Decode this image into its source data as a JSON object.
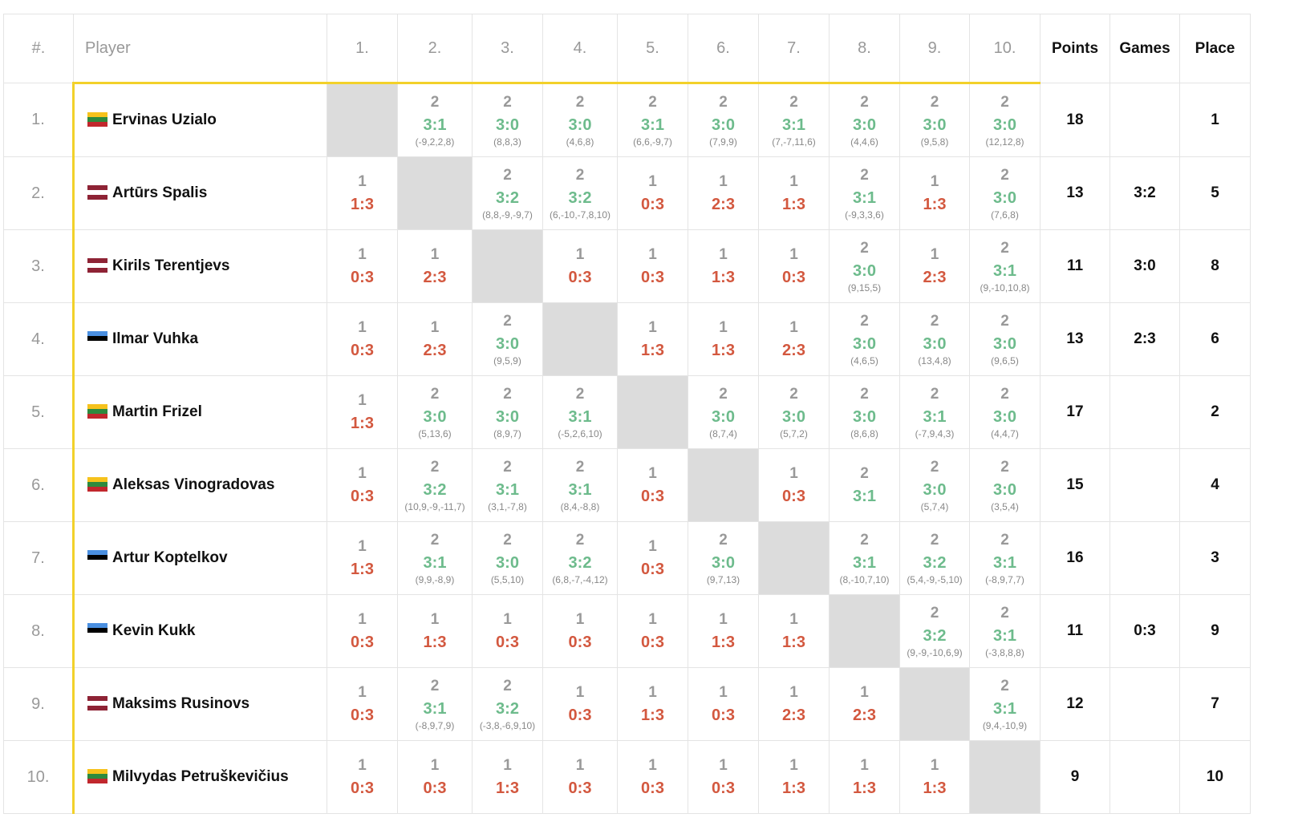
{
  "headers": {
    "index": "#.",
    "player": "Player",
    "columns": [
      "1.",
      "2.",
      "3.",
      "4.",
      "5.",
      "6.",
      "7.",
      "8.",
      "9.",
      "10."
    ],
    "points": "Points",
    "games": "Games",
    "place": "Place"
  },
  "colors": {
    "accent_line": "#f2d12a",
    "win": "#6dbb8c",
    "loss": "#d3583f",
    "self_cell": "#dcdcdc"
  },
  "rows": [
    {
      "index": "1.",
      "name": "Ervinas Uzialo",
      "flag": "lithuania",
      "points": "18",
      "games": "",
      "place": "1",
      "results": [
        null,
        {
          "pts": "2",
          "score": "3:1",
          "sets": "(-9,2,2,8)"
        },
        {
          "pts": "2",
          "score": "3:0",
          "sets": "(8,8,3)"
        },
        {
          "pts": "2",
          "score": "3:0",
          "sets": "(4,6,8)"
        },
        {
          "pts": "2",
          "score": "3:1",
          "sets": "(6,6,-9,7)"
        },
        {
          "pts": "2",
          "score": "3:0",
          "sets": "(7,9,9)"
        },
        {
          "pts": "2",
          "score": "3:1",
          "sets": "(7,-7,11,6)"
        },
        {
          "pts": "2",
          "score": "3:0",
          "sets": "(4,4,6)"
        },
        {
          "pts": "2",
          "score": "3:0",
          "sets": "(9,5,8)"
        },
        {
          "pts": "2",
          "score": "3:0",
          "sets": "(12,12,8)"
        }
      ]
    },
    {
      "index": "2.",
      "name": "Artūrs Spalis",
      "flag": "latvia",
      "points": "13",
      "games": "3:2",
      "place": "5",
      "results": [
        {
          "pts": "1",
          "score": "1:3",
          "sets": ""
        },
        null,
        {
          "pts": "2",
          "score": "3:2",
          "sets": "(8,8,-9,-9,7)"
        },
        {
          "pts": "2",
          "score": "3:2",
          "sets": "(6,-10,-7,8,10)"
        },
        {
          "pts": "1",
          "score": "0:3",
          "sets": ""
        },
        {
          "pts": "1",
          "score": "2:3",
          "sets": ""
        },
        {
          "pts": "1",
          "score": "1:3",
          "sets": ""
        },
        {
          "pts": "2",
          "score": "3:1",
          "sets": "(-9,3,3,6)"
        },
        {
          "pts": "1",
          "score": "1:3",
          "sets": ""
        },
        {
          "pts": "2",
          "score": "3:0",
          "sets": "(7,6,8)"
        }
      ]
    },
    {
      "index": "3.",
      "name": "Kirils Terentjevs",
      "flag": "latvia",
      "points": "11",
      "games": "3:0",
      "place": "8",
      "results": [
        {
          "pts": "1",
          "score": "0:3",
          "sets": ""
        },
        {
          "pts": "1",
          "score": "2:3",
          "sets": ""
        },
        null,
        {
          "pts": "1",
          "score": "0:3",
          "sets": ""
        },
        {
          "pts": "1",
          "score": "0:3",
          "sets": ""
        },
        {
          "pts": "1",
          "score": "1:3",
          "sets": ""
        },
        {
          "pts": "1",
          "score": "0:3",
          "sets": ""
        },
        {
          "pts": "2",
          "score": "3:0",
          "sets": "(9,15,5)"
        },
        {
          "pts": "1",
          "score": "2:3",
          "sets": ""
        },
        {
          "pts": "2",
          "score": "3:1",
          "sets": "(9,-10,10,8)"
        }
      ]
    },
    {
      "index": "4.",
      "name": "Ilmar Vuhka",
      "flag": "estonia",
      "points": "13",
      "games": "2:3",
      "place": "6",
      "results": [
        {
          "pts": "1",
          "score": "0:3",
          "sets": ""
        },
        {
          "pts": "1",
          "score": "2:3",
          "sets": ""
        },
        {
          "pts": "2",
          "score": "3:0",
          "sets": "(9,5,9)"
        },
        null,
        {
          "pts": "1",
          "score": "1:3",
          "sets": ""
        },
        {
          "pts": "1",
          "score": "1:3",
          "sets": ""
        },
        {
          "pts": "1",
          "score": "2:3",
          "sets": ""
        },
        {
          "pts": "2",
          "score": "3:0",
          "sets": "(4,6,5)"
        },
        {
          "pts": "2",
          "score": "3:0",
          "sets": "(13,4,8)"
        },
        {
          "pts": "2",
          "score": "3:0",
          "sets": "(9,6,5)"
        }
      ]
    },
    {
      "index": "5.",
      "name": "Martin Frizel",
      "flag": "lithuania",
      "points": "17",
      "games": "",
      "place": "2",
      "results": [
        {
          "pts": "1",
          "score": "1:3",
          "sets": ""
        },
        {
          "pts": "2",
          "score": "3:0",
          "sets": "(5,13,6)"
        },
        {
          "pts": "2",
          "score": "3:0",
          "sets": "(8,9,7)"
        },
        {
          "pts": "2",
          "score": "3:1",
          "sets": "(-5,2,6,10)"
        },
        null,
        {
          "pts": "2",
          "score": "3:0",
          "sets": "(8,7,4)"
        },
        {
          "pts": "2",
          "score": "3:0",
          "sets": "(5,7,2)"
        },
        {
          "pts": "2",
          "score": "3:0",
          "sets": "(8,6,8)"
        },
        {
          "pts": "2",
          "score": "3:1",
          "sets": "(-7,9,4,3)"
        },
        {
          "pts": "2",
          "score": "3:0",
          "sets": "(4,4,7)"
        }
      ]
    },
    {
      "index": "6.",
      "name": "Aleksas Vinogradovas",
      "flag": "lithuania",
      "points": "15",
      "games": "",
      "place": "4",
      "results": [
        {
          "pts": "1",
          "score": "0:3",
          "sets": ""
        },
        {
          "pts": "2",
          "score": "3:2",
          "sets": "(10,9,-9,-11,7)"
        },
        {
          "pts": "2",
          "score": "3:1",
          "sets": "(3,1,-7,8)"
        },
        {
          "pts": "2",
          "score": "3:1",
          "sets": "(8,4,-8,8)"
        },
        {
          "pts": "1",
          "score": "0:3",
          "sets": ""
        },
        null,
        {
          "pts": "1",
          "score": "0:3",
          "sets": ""
        },
        {
          "pts": "2",
          "score": "3:1",
          "sets": ""
        },
        {
          "pts": "2",
          "score": "3:0",
          "sets": "(5,7,4)"
        },
        {
          "pts": "2",
          "score": "3:0",
          "sets": "(3,5,4)"
        }
      ]
    },
    {
      "index": "7.",
      "name": "Artur Koptelkov",
      "flag": "estonia",
      "points": "16",
      "games": "",
      "place": "3",
      "results": [
        {
          "pts": "1",
          "score": "1:3",
          "sets": ""
        },
        {
          "pts": "2",
          "score": "3:1",
          "sets": "(9,9,-8,9)"
        },
        {
          "pts": "2",
          "score": "3:0",
          "sets": "(5,5,10)"
        },
        {
          "pts": "2",
          "score": "3:2",
          "sets": "(6,8,-7,-4,12)"
        },
        {
          "pts": "1",
          "score": "0:3",
          "sets": ""
        },
        {
          "pts": "2",
          "score": "3:0",
          "sets": "(9,7,13)"
        },
        null,
        {
          "pts": "2",
          "score": "3:1",
          "sets": "(8,-10,7,10)"
        },
        {
          "pts": "2",
          "score": "3:2",
          "sets": "(5,4,-9,-5,10)"
        },
        {
          "pts": "2",
          "score": "3:1",
          "sets": "(-8,9,7,7)"
        }
      ]
    },
    {
      "index": "8.",
      "name": "Kevin Kukk",
      "flag": "estonia",
      "points": "11",
      "games": "0:3",
      "place": "9",
      "results": [
        {
          "pts": "1",
          "score": "0:3",
          "sets": ""
        },
        {
          "pts": "1",
          "score": "1:3",
          "sets": ""
        },
        {
          "pts": "1",
          "score": "0:3",
          "sets": ""
        },
        {
          "pts": "1",
          "score": "0:3",
          "sets": ""
        },
        {
          "pts": "1",
          "score": "0:3",
          "sets": ""
        },
        {
          "pts": "1",
          "score": "1:3",
          "sets": ""
        },
        {
          "pts": "1",
          "score": "1:3",
          "sets": ""
        },
        null,
        {
          "pts": "2",
          "score": "3:2",
          "sets": "(9,-9,-10,6,9)"
        },
        {
          "pts": "2",
          "score": "3:1",
          "sets": "(-3,8,8,8)"
        }
      ]
    },
    {
      "index": "9.",
      "name": "Maksims Rusinovs",
      "flag": "latvia",
      "points": "12",
      "games": "",
      "place": "7",
      "results": [
        {
          "pts": "1",
          "score": "0:3",
          "sets": ""
        },
        {
          "pts": "2",
          "score": "3:1",
          "sets": "(-8,9,7,9)"
        },
        {
          "pts": "2",
          "score": "3:2",
          "sets": "(-3,8,-6,9,10)"
        },
        {
          "pts": "1",
          "score": "0:3",
          "sets": ""
        },
        {
          "pts": "1",
          "score": "1:3",
          "sets": ""
        },
        {
          "pts": "1",
          "score": "0:3",
          "sets": ""
        },
        {
          "pts": "1",
          "score": "2:3",
          "sets": ""
        },
        {
          "pts": "1",
          "score": "2:3",
          "sets": ""
        },
        null,
        {
          "pts": "2",
          "score": "3:1",
          "sets": "(9,4,-10,9)"
        }
      ]
    },
    {
      "index": "10.",
      "name": "Milvydas Petruškevičius",
      "flag": "lithuania",
      "points": "9",
      "games": "",
      "place": "10",
      "results": [
        {
          "pts": "1",
          "score": "0:3",
          "sets": ""
        },
        {
          "pts": "1",
          "score": "0:3",
          "sets": ""
        },
        {
          "pts": "1",
          "score": "1:3",
          "sets": ""
        },
        {
          "pts": "1",
          "score": "0:3",
          "sets": ""
        },
        {
          "pts": "1",
          "score": "0:3",
          "sets": ""
        },
        {
          "pts": "1",
          "score": "0:3",
          "sets": ""
        },
        {
          "pts": "1",
          "score": "1:3",
          "sets": ""
        },
        {
          "pts": "1",
          "score": "1:3",
          "sets": ""
        },
        {
          "pts": "1",
          "score": "1:3",
          "sets": ""
        },
        null
      ]
    }
  ]
}
